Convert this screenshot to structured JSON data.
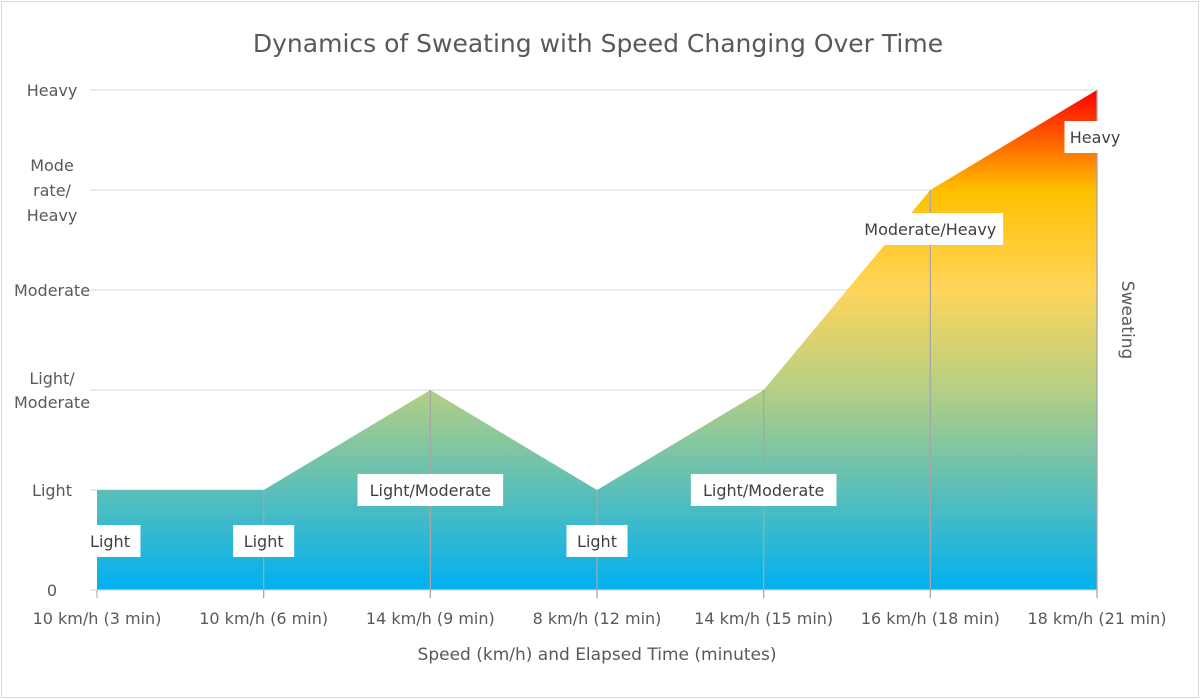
{
  "chart_data": {
    "type": "area",
    "title": "Dynamics of Sweating with Speed Changing Over Time",
    "xlabel": "Speed (km/h) and Elapsed Time (minutes)",
    "ylabel": "Sweating",
    "categories": [
      "10 km/h (3 min)",
      "10 km/h (6 min)",
      "14 km/h (9 min)",
      "8 km/h (12 min)",
      "14 km/h (15 min)",
      "16 km/h (18 min)",
      "18 km/h (21 min)"
    ],
    "values": [
      1,
      1,
      2,
      1,
      2,
      4,
      5
    ],
    "data_labels": [
      "Light",
      "Light",
      "Light/Moderate",
      "Light",
      "Light/Moderate",
      "Moderate/Heavy",
      "Heavy"
    ],
    "y_ticks": [
      {
        "value": 0,
        "lines": [
          "0"
        ]
      },
      {
        "value": 1,
        "lines": [
          "Light"
        ]
      },
      {
        "value": 2,
        "lines": [
          "Light/",
          "Moderate"
        ]
      },
      {
        "value": 3,
        "lines": [
          "Moderate"
        ]
      },
      {
        "value": 4,
        "lines": [
          "Mode",
          "rate/",
          "Heavy"
        ]
      },
      {
        "value": 5,
        "lines": [
          "Heavy"
        ]
      }
    ],
    "ylim": [
      0,
      5
    ],
    "grid": true,
    "legend": "none",
    "gradient_colors": [
      "#00b0f0",
      "#5bbfb8",
      "#b5cf84",
      "#ffd55a",
      "#ffc000",
      "#ff0000"
    ]
  }
}
